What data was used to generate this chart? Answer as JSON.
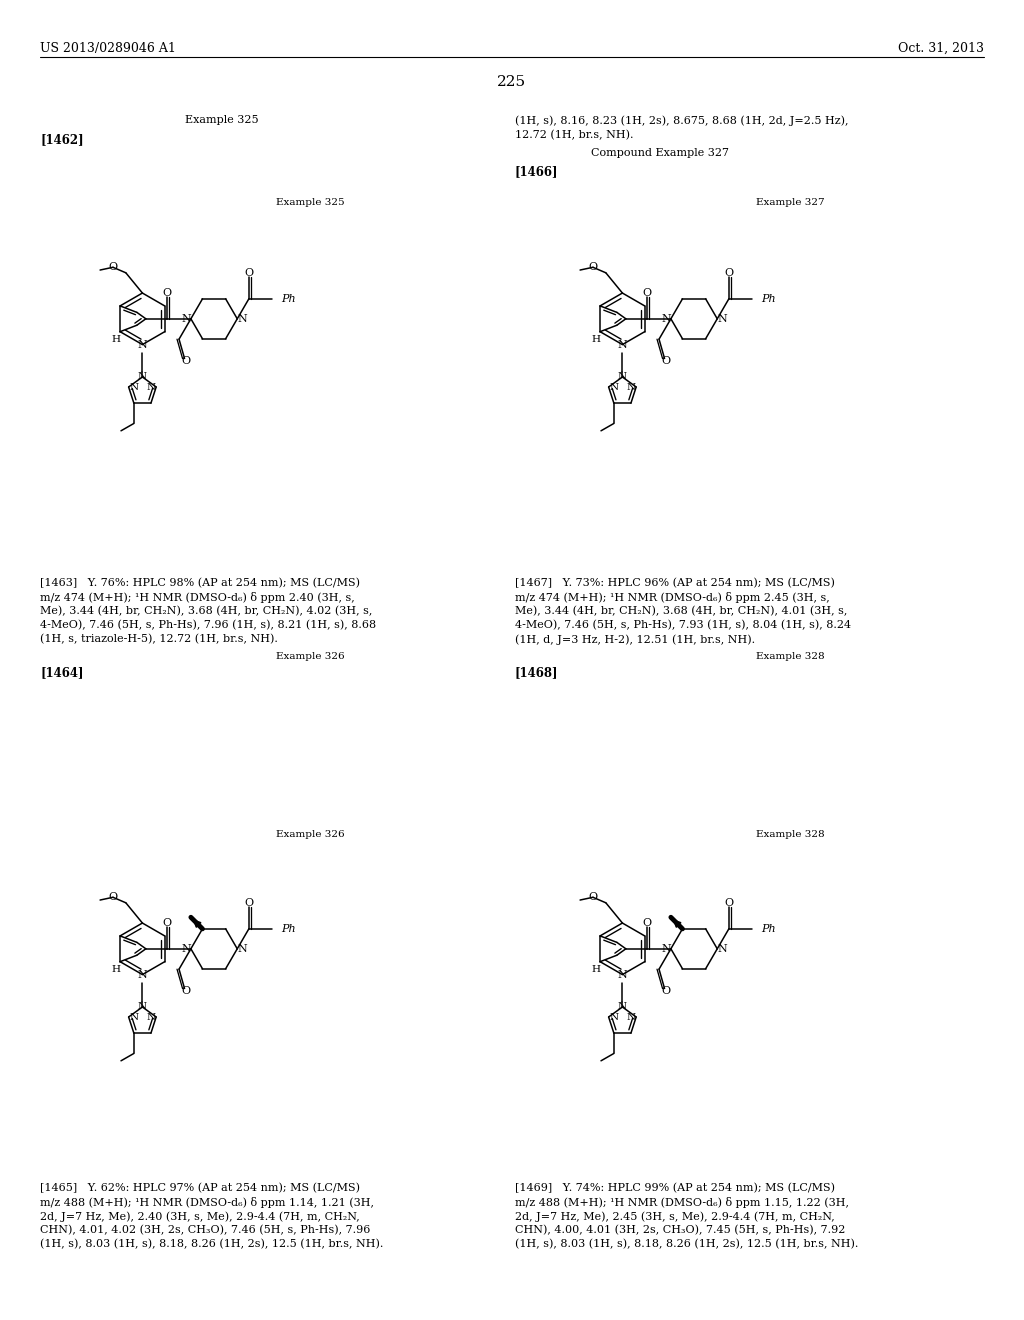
{
  "page_number": "225",
  "header_left": "US 2013/0289046 A1",
  "header_right": "Oct. 31, 2013",
  "background_color": "#ffffff",
  "text_color": "#000000",
  "top_right_text1": "(1H, s), 8.16, 8.23 (1H, 2s), 8.675, 8.68 (1H, 2d, J=2.5 Hz),",
  "top_right_text2": "12.72 (1H, br.s, NH).",
  "top_left_example": "Example 325",
  "label_1462": "[1462]",
  "compound_example_327": "Compound Example 327",
  "label_1466": "[1466]",
  "label_1463": "[1463]",
  "label_1464": "[1464]",
  "label_1467": "[1467]",
  "label_1468": "[1468]",
  "example_326": "Example 326",
  "example_328": "Example 328",
  "para_1463": "[1463]   Y. 76%: HPLC 98% (AP at 254 nm); MS (LC/MS) m/z 474 (M+H); ¹H NMR (DMSO-d₆) δ ppm 2.40 (3H, s, Me), 3.44 (4H, br, CH₂N), 3.68 (4H, br, CH₂N), 4.02 (3H, s, 4-MeO), 7.46 (5H, s, Ph-Hs), 7.96 (1H, s), 8.21 (1H, s), 8.68 (1H, s, triazole-H-5), 12.72 (1H, br.s, NH).",
  "para_1467": "[1467]   Y. 73%: HPLC 96% (AP at 254 nm); MS (LC/MS) m/z 474 (M+H); ¹H NMR (DMSO-d₆) δ ppm 2.45 (3H, s, Me), 3.44 (4H, br, CH₂N), 3.68 (4H, br, CH₂N), 4.01 (3H, s, 4-MeO), 7.46 (5H, s, Ph-Hs), 7.93 (1H, s), 8.04 (1H, s), 8.24 (1H, d, J=3 Hz, H-2), 12.51 (1H, br.s, NH).",
  "para_1465": "[1465]   Y. 62%: HPLC 97% (AP at 254 nm); MS (LC/MS) m/z 488 (M+H); ¹H NMR (DMSO-d₆) δ ppm 1.14, 1.21 (3H, 2d, J=7 Hz, Me), 2.40 (3H, s, Me), 2.9-4.4 (7H, m, CH₂N, CHN), 4.01, 4.02 (3H, 2s, CH₃O), 7.46 (5H, s, Ph-Hs), 7.96 (1H, s), 8.03 (1H, s), 8.18, 8.26 (1H, 2s), 12.5 (1H, br.s, NH).",
  "para_1469": "[1469]   Y. 74%: HPLC 99% (AP at 254 nm); MS (LC/MS) m/z 488 (M+H); ¹H NMR (DMSO-d₆) δ ppm 1.15, 1.22 (3H, 2d, J=7 Hz, Me), 2.45 (3H, s, Me), 2.9-4.4 (7H, m, CH₂N, CHN), 4.00, 4.01 (3H, 2s, CH₃O), 7.45 (5H, s, Ph-Hs), 7.92 (1H, s), 8.03 (1H, s), 8.18, 8.26 (1H, 2s), 12.5 (1H, br.s, NH)."
}
